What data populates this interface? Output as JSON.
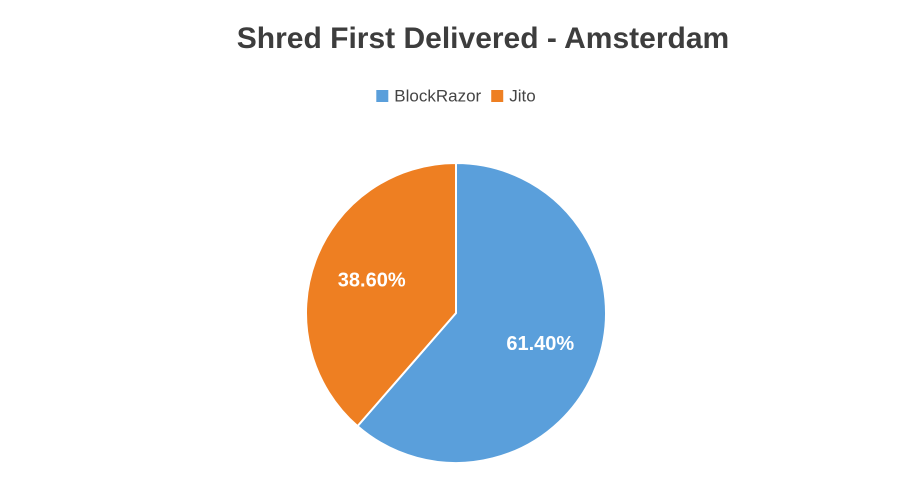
{
  "chart_data": {
    "type": "pie",
    "title": "Shred First Delivered - Amsterdam",
    "categories": [
      "BlockRazor",
      "Jito"
    ],
    "values": [
      61.4,
      38.6
    ],
    "value_labels": [
      "61.40%",
      "38.60%"
    ],
    "colors": [
      "#5a9fdb",
      "#ee7f22"
    ],
    "legend": "top"
  }
}
